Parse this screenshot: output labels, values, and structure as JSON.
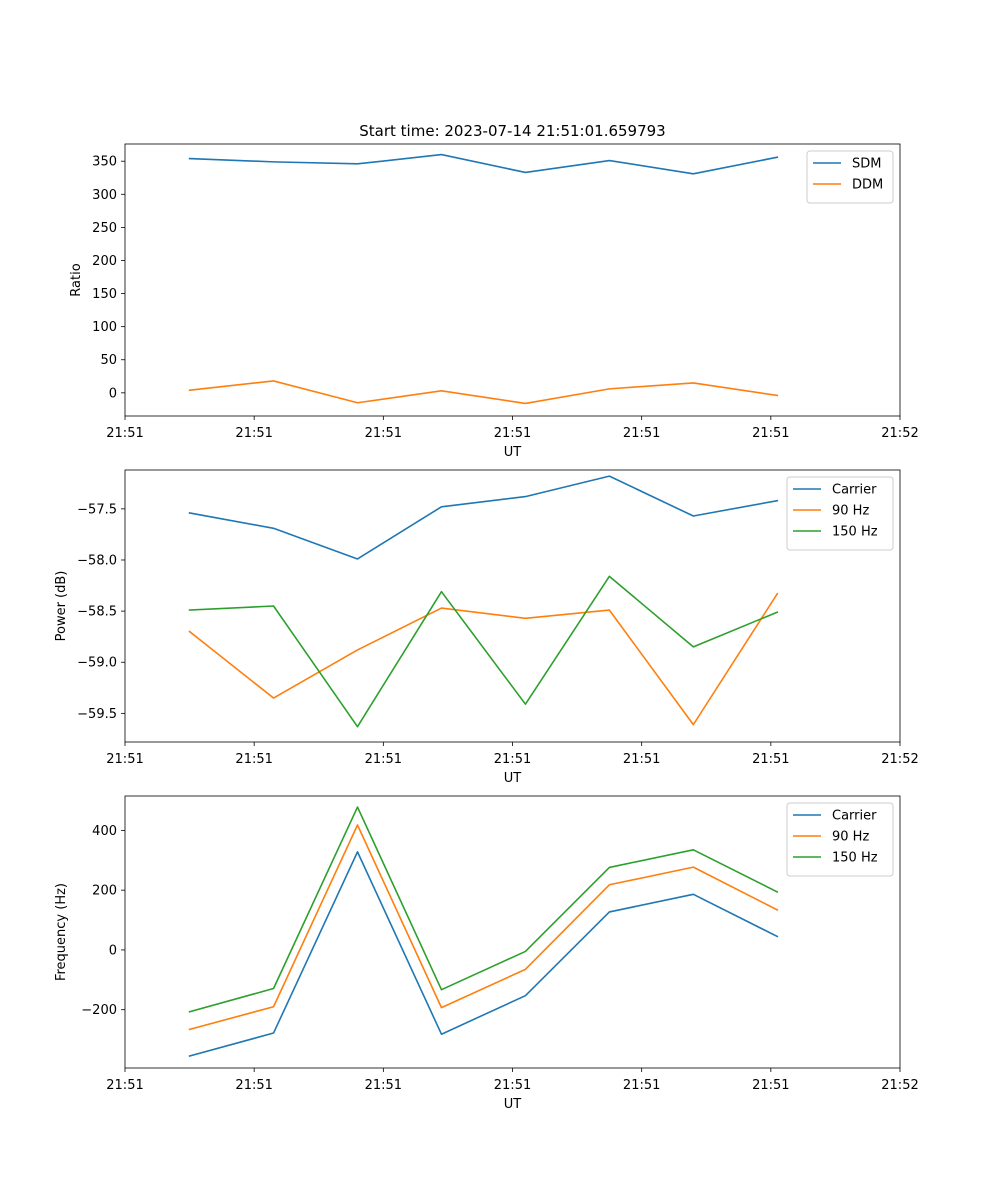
{
  "figure": {
    "title": "Start time: 2023-07-14 21:51:01.659793",
    "colors": {
      "blue": "#1f77b4",
      "orange": "#ff7f0e",
      "green": "#2ca02c"
    }
  },
  "chart_data": [
    {
      "type": "line",
      "title": "Start time: 2023-07-14 21:51:01.659793",
      "xlabel": "UT",
      "ylabel": "Ratio",
      "x_tick_labels": [
        "21:51",
        "21:51",
        "21:51",
        "21:51",
        "21:51",
        "21:51",
        "21:52"
      ],
      "y_ticks": [
        0,
        50,
        100,
        150,
        200,
        250,
        300,
        350
      ],
      "y_tick_labels": [
        "0",
        "50",
        "100",
        "150",
        "200",
        "250",
        "300",
        "350"
      ],
      "xlim": [
        0,
        6
      ],
      "ylim": [
        -35,
        376
      ],
      "x": [
        0.5,
        1.15,
        1.8,
        2.45,
        3.1,
        3.75,
        4.4,
        5.05
      ],
      "legend": "top-right",
      "series": [
        {
          "name": "SDM",
          "color": "#1f77b4",
          "values": [
            354,
            349,
            346,
            360,
            333,
            351,
            331,
            356
          ]
        },
        {
          "name": "DDM",
          "color": "#ff7f0e",
          "values": [
            4,
            18,
            -15,
            3,
            -16,
            6,
            15,
            -4
          ]
        }
      ]
    },
    {
      "type": "line",
      "title": "",
      "xlabel": "UT",
      "ylabel": "Power (dB)",
      "x_tick_labels": [
        "21:51",
        "21:51",
        "21:51",
        "21:51",
        "21:51",
        "21:51",
        "21:52"
      ],
      "y_ticks": [
        -57.5,
        -58.0,
        -58.5,
        -59.0,
        -59.5
      ],
      "y_tick_labels": [
        "−57.5",
        "−58.0",
        "−58.5",
        "−59.0",
        "−59.5"
      ],
      "xlim": [
        0,
        6
      ],
      "ylim": [
        -59.78,
        -57.12
      ],
      "x": [
        0.5,
        1.15,
        1.8,
        2.45,
        3.1,
        3.75,
        4.4,
        5.05
      ],
      "legend": "top-right",
      "series": [
        {
          "name": "Carrier",
          "color": "#1f77b4",
          "values": [
            -57.54,
            -57.69,
            -57.99,
            -57.48,
            -57.38,
            -57.18,
            -57.57,
            -57.42
          ]
        },
        {
          "name": "90 Hz",
          "color": "#ff7f0e",
          "values": [
            -58.7,
            -59.35,
            -58.88,
            -58.47,
            -58.57,
            -58.49,
            -59.61,
            -58.33
          ]
        },
        {
          "name": "150 Hz",
          "color": "#2ca02c",
          "values": [
            -58.49,
            -58.45,
            -59.63,
            -58.31,
            -59.41,
            -58.16,
            -58.85,
            -58.51
          ]
        }
      ]
    },
    {
      "type": "line",
      "title": "",
      "xlabel": "UT",
      "ylabel": "Frequency (Hz)",
      "x_tick_labels": [
        "21:51",
        "21:51",
        "21:51",
        "21:51",
        "21:51",
        "21:51",
        "21:52"
      ],
      "y_ticks": [
        400,
        200,
        0,
        -200
      ],
      "y_tick_labels": [
        "400",
        "200",
        "0",
        "−200"
      ],
      "xlim": [
        0,
        6
      ],
      "ylim": [
        -395,
        515
      ],
      "x": [
        0.5,
        1.15,
        1.8,
        2.45,
        3.1,
        3.75,
        4.4,
        5.05
      ],
      "legend": "top-right",
      "series": [
        {
          "name": "Carrier",
          "color": "#1f77b4",
          "values": [
            -355,
            -278,
            328,
            -282,
            -153,
            127,
            186,
            45
          ]
        },
        {
          "name": "90 Hz",
          "color": "#ff7f0e",
          "values": [
            -266,
            -190,
            418,
            -193,
            -65,
            218,
            277,
            134
          ]
        },
        {
          "name": "150 Hz",
          "color": "#2ca02c",
          "values": [
            -207,
            -129,
            478,
            -133,
            -5,
            276,
            335,
            194
          ]
        }
      ]
    }
  ]
}
